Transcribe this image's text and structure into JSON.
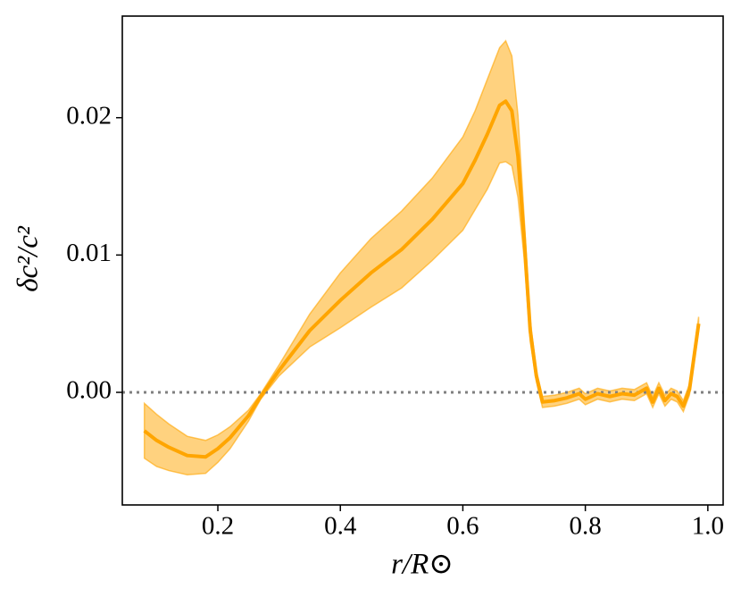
{
  "chart_data": {
    "type": "line_band",
    "x_label": "r/R⊙",
    "y_label": "δc²/c²",
    "x": [
      0.08,
      0.1,
      0.12,
      0.15,
      0.18,
      0.2,
      0.22,
      0.25,
      0.27,
      0.3,
      0.35,
      0.4,
      0.45,
      0.5,
      0.55,
      0.6,
      0.62,
      0.64,
      0.66,
      0.67,
      0.68,
      0.69,
      0.7,
      0.71,
      0.72,
      0.73,
      0.75,
      0.77,
      0.79,
      0.8,
      0.82,
      0.84,
      0.86,
      0.88,
      0.9,
      0.91,
      0.92,
      0.93,
      0.94,
      0.95,
      0.96,
      0.97,
      0.985
    ],
    "values": [
      -0.0028,
      -0.0035,
      -0.004,
      -0.0046,
      -0.0047,
      -0.0041,
      -0.0033,
      -0.0017,
      -0.0003,
      0.0016,
      0.0045,
      0.0067,
      0.0087,
      0.0104,
      0.0126,
      0.0152,
      0.0169,
      0.0188,
      0.0209,
      0.0212,
      0.0205,
      0.0172,
      0.0113,
      0.0045,
      0.0012,
      -0.0007,
      -0.0006,
      -0.0004,
      -0.0001,
      -0.0005,
      -0.0001,
      -0.0003,
      -0.0001,
      -0.0002,
      0.0003,
      -0.0007,
      0.0003,
      -0.0006,
      -0.0001,
      -0.0003,
      -0.001,
      0.0002,
      0.005
    ],
    "lower": [
      -0.0048,
      -0.0054,
      -0.0057,
      -0.006,
      -0.0059,
      -0.0051,
      -0.0041,
      -0.0021,
      -0.0005,
      0.0012,
      0.0033,
      0.0047,
      0.0062,
      0.0076,
      0.0096,
      0.0118,
      0.0133,
      0.0148,
      0.0167,
      0.0168,
      0.0165,
      0.0142,
      0.0098,
      0.0037,
      0.0008,
      -0.0011,
      -0.001,
      -0.0008,
      -0.0005,
      -0.0009,
      -0.0005,
      -0.0007,
      -0.0005,
      -0.0006,
      -0.0001,
      -0.0011,
      -0.0001,
      -0.001,
      -0.0005,
      -0.0007,
      -0.0014,
      -0.0002,
      0.0045
    ],
    "upper": [
      -0.0008,
      -0.0016,
      -0.0023,
      -0.0032,
      -0.0035,
      -0.0031,
      -0.0025,
      -0.0013,
      -0.0001,
      0.002,
      0.0057,
      0.0087,
      0.0112,
      0.0132,
      0.0156,
      0.0186,
      0.0205,
      0.0228,
      0.0251,
      0.0256,
      0.0245,
      0.0202,
      0.0128,
      0.0053,
      0.0016,
      -0.0003,
      -0.0002,
      0.0,
      0.0003,
      -0.0001,
      0.0003,
      0.0001,
      0.0003,
      0.0002,
      0.0007,
      -0.0003,
      0.0007,
      -0.0002,
      0.0003,
      0.0001,
      -0.0006,
      0.0006,
      0.0055
    ],
    "color": "#ffa500",
    "reference_line": 0,
    "reference_color": "#808080",
    "xlim": [
      0.044,
      1.025
    ],
    "ylim": [
      -0.0082,
      0.0274
    ],
    "xticks": [
      0.2,
      0.4,
      0.6,
      0.8,
      {
        "value": 1,
        "label": "1.0"
      }
    ],
    "yticks": [
      {
        "value": 0,
        "label": "0.00"
      },
      {
        "value": 0.01,
        "label": "0.01"
      },
      {
        "value": 0.02,
        "label": "0.02"
      }
    ]
  }
}
